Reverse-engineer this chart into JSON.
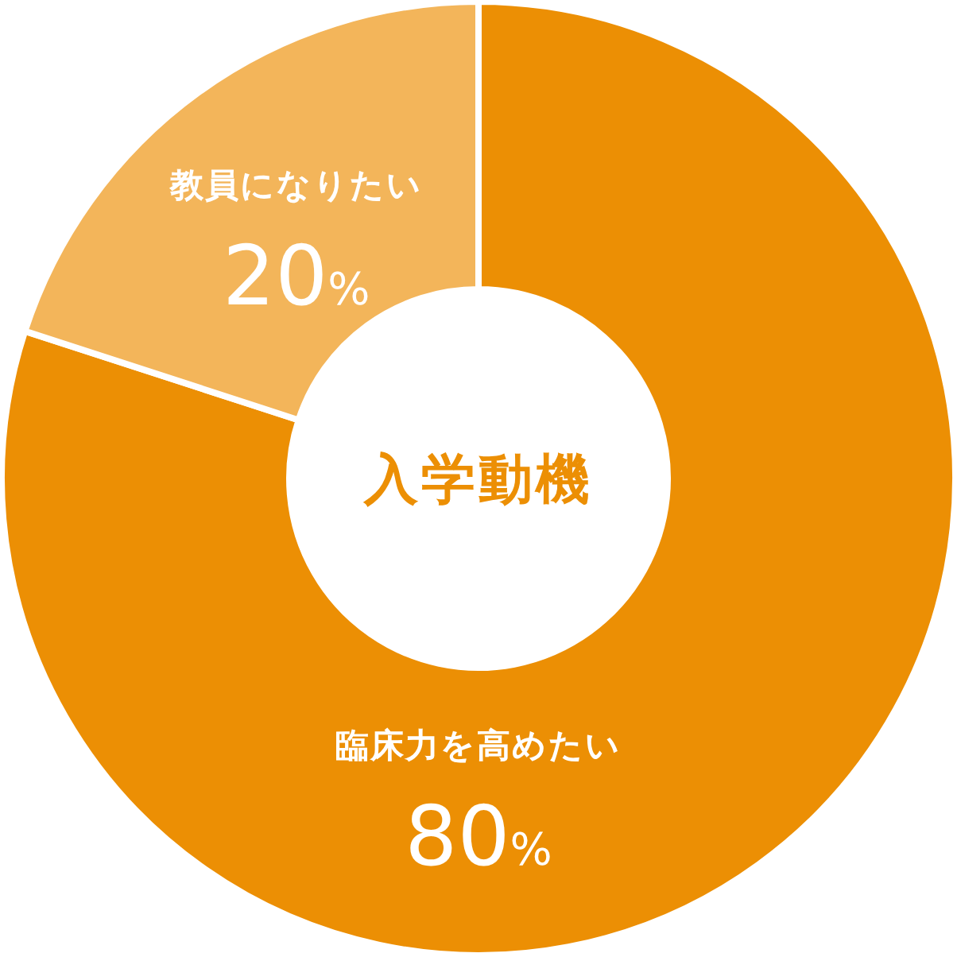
{
  "chart_data": {
    "type": "donut",
    "title": "入学動機",
    "categories": [
      "臨床力を高めたい",
      "教員になりたい"
    ],
    "values": [
      80,
      20
    ],
    "colors": [
      "#ec8f04",
      "#f3b55a"
    ],
    "value_labels": [
      "80%",
      "20%"
    ]
  }
}
